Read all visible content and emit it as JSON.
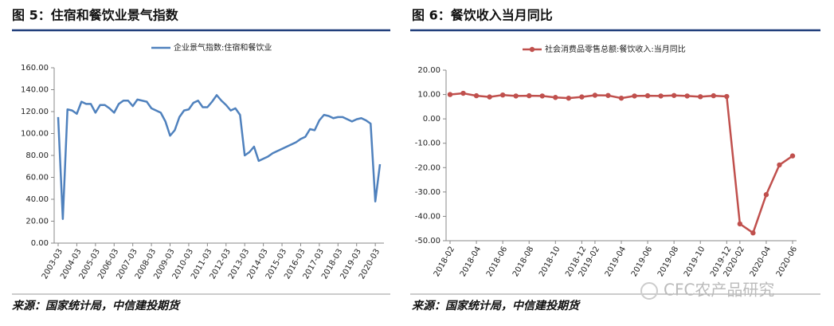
{
  "chart_data": [
    {
      "type": "line",
      "title": "图 5：住宿和餐饮业景气指数",
      "source": "来源：国家统计局，中信建投期货",
      "categories": [
        "2003-03",
        null,
        null,
        null,
        "2004-03",
        null,
        null,
        null,
        "2005-03",
        null,
        null,
        null,
        "2006-03",
        null,
        null,
        null,
        "2007-03",
        null,
        null,
        null,
        "2008-03",
        null,
        null,
        null,
        "2009-03",
        null,
        null,
        null,
        "2010-03",
        null,
        null,
        null,
        "2011-03",
        null,
        null,
        null,
        "2012-03",
        null,
        null,
        null,
        "2013-03",
        null,
        null,
        null,
        "2014-03",
        null,
        null,
        null,
        "2015-03",
        null,
        null,
        null,
        "2016-03",
        null,
        null,
        null,
        "2017-03",
        null,
        null,
        null,
        "2018-03",
        null,
        null,
        null,
        "2019-03",
        null,
        null,
        null,
        "2020-03",
        null
      ],
      "series": [
        {
          "name": "企业景气指数:住宿和餐饮业",
          "color": "#4f81bd",
          "values": [
            115,
            22,
            122,
            121,
            118,
            129,
            127,
            127,
            119,
            126,
            126,
            123,
            119,
            127,
            130,
            130,
            125,
            131,
            130,
            129,
            123,
            121,
            119,
            111,
            98,
            103,
            115,
            121,
            122,
            128,
            130,
            124,
            124,
            129,
            135,
            130,
            126,
            121,
            123,
            117,
            80,
            83,
            88,
            75,
            77,
            79,
            82,
            84,
            86,
            88,
            90,
            92,
            95,
            97,
            104,
            103,
            112,
            117,
            116,
            114,
            115,
            115,
            113,
            111,
            113,
            114,
            112,
            109,
            38,
            72
          ]
        }
      ],
      "ylim": [
        0,
        160
      ],
      "yticks": [
        {
          "value": 0,
          "label": "0.00"
        },
        {
          "value": 20,
          "label": "20.00"
        },
        {
          "value": 40,
          "label": "40.00"
        },
        {
          "value": 60,
          "label": "60.00"
        },
        {
          "value": 80,
          "label": "80.00"
        },
        {
          "value": 100,
          "label": "100.00"
        },
        {
          "value": 120,
          "label": "120.00"
        },
        {
          "value": 140,
          "label": "140.00"
        },
        {
          "value": 160,
          "label": "160.00"
        }
      ],
      "markers": false,
      "grid": false
    },
    {
      "type": "line",
      "title": "图 6：餐饮收入当月同比",
      "source": "来源：国家统计局，中信建投期货",
      "categories": [
        "2018-02",
        null,
        "2018-04",
        null,
        "2018-06",
        null,
        "2018-08",
        null,
        "2018-10",
        null,
        "2018-12",
        "2019-02",
        null,
        "2019-04",
        null,
        "2019-06",
        null,
        "2019-08",
        null,
        "2019-10",
        null,
        "2019-12",
        "2020-02",
        null,
        "2020-04",
        null,
        "2020-06"
      ],
      "series": [
        {
          "name": "社会消费品零售总额:餐饮收入:当月同比",
          "color": "#c0504d",
          "values": [
            10,
            10.5,
            9.5,
            9,
            9.8,
            9.4,
            9.5,
            9.4,
            8.8,
            8.5,
            9,
            9.7,
            9.6,
            8.5,
            9.4,
            9.5,
            9.4,
            9.6,
            9.4,
            9.1,
            9.5,
            9.2,
            -43.1,
            -46.8,
            -31.1,
            -18.9,
            -15.2
          ]
        }
      ],
      "ylim": [
        -50,
        20
      ],
      "yticks": [
        {
          "value": -50,
          "label": "-50.00"
        },
        {
          "value": -40,
          "label": "-40.00"
        },
        {
          "value": -30,
          "label": "-30.00"
        },
        {
          "value": -20,
          "label": "-20.00"
        },
        {
          "value": -10,
          "label": "-10.00"
        },
        {
          "value": 0,
          "label": "0.00"
        },
        {
          "value": 10,
          "label": "10.00"
        },
        {
          "value": 20,
          "label": "20.00"
        }
      ],
      "markers": true,
      "grid": false
    }
  ],
  "watermark": "CFC农产品研究"
}
